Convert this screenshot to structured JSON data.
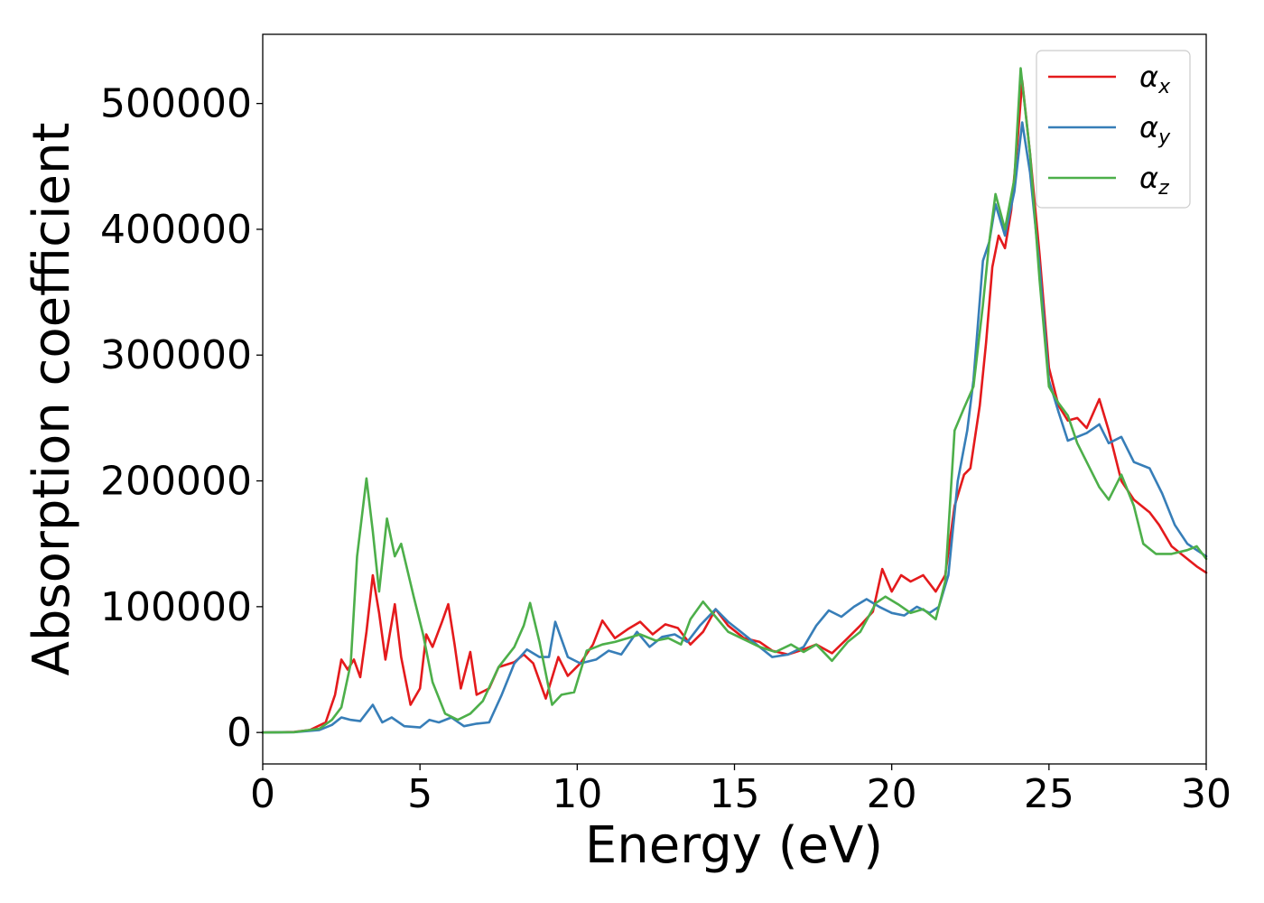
{
  "chart_data": {
    "type": "line",
    "xlabel": "Energy (eV)",
    "ylabel": "Absorption coefficient",
    "xlim": [
      0,
      30
    ],
    "ylim": [
      -25000,
      555000
    ],
    "xticks": [
      "0",
      "5",
      "10",
      "15",
      "20",
      "25",
      "30"
    ],
    "yticks": [
      "0",
      "100000",
      "200000",
      "300000",
      "400000",
      "500000"
    ],
    "grid": false,
    "legend_position": "top-right",
    "series": [
      {
        "name": "α",
        "subscript": "x",
        "color": "#e41a1c",
        "points": [
          [
            0,
            0
          ],
          [
            1,
            500
          ],
          [
            1.5,
            2000
          ],
          [
            2,
            8000
          ],
          [
            2.3,
            30000
          ],
          [
            2.5,
            58000
          ],
          [
            2.7,
            50000
          ],
          [
            2.9,
            58000
          ],
          [
            3.1,
            44000
          ],
          [
            3.3,
            80000
          ],
          [
            3.5,
            125000
          ],
          [
            3.7,
            95000
          ],
          [
            3.9,
            58000
          ],
          [
            4.2,
            102000
          ],
          [
            4.4,
            60000
          ],
          [
            4.7,
            22000
          ],
          [
            5.0,
            35000
          ],
          [
            5.2,
            78000
          ],
          [
            5.4,
            68000
          ],
          [
            5.7,
            88000
          ],
          [
            5.9,
            102000
          ],
          [
            6.1,
            70000
          ],
          [
            6.3,
            35000
          ],
          [
            6.6,
            64000
          ],
          [
            6.8,
            30000
          ],
          [
            7.2,
            35000
          ],
          [
            7.5,
            52000
          ],
          [
            8.0,
            56000
          ],
          [
            8.3,
            62000
          ],
          [
            8.6,
            55000
          ],
          [
            9.0,
            27000
          ],
          [
            9.4,
            60000
          ],
          [
            9.7,
            45000
          ],
          [
            10.1,
            55000
          ],
          [
            10.5,
            70000
          ],
          [
            10.8,
            89000
          ],
          [
            11.2,
            75000
          ],
          [
            11.6,
            82000
          ],
          [
            12.0,
            88000
          ],
          [
            12.4,
            78000
          ],
          [
            12.8,
            86000
          ],
          [
            13.2,
            83000
          ],
          [
            13.6,
            70000
          ],
          [
            14.0,
            80000
          ],
          [
            14.4,
            98000
          ],
          [
            14.8,
            85000
          ],
          [
            15.3,
            75000
          ],
          [
            15.8,
            72000
          ],
          [
            16.2,
            65000
          ],
          [
            16.7,
            62000
          ],
          [
            17.2,
            66000
          ],
          [
            17.6,
            70000
          ],
          [
            18.1,
            63000
          ],
          [
            18.6,
            75000
          ],
          [
            19.0,
            85000
          ],
          [
            19.4,
            96000
          ],
          [
            19.7,
            130000
          ],
          [
            20.0,
            112000
          ],
          [
            20.3,
            125000
          ],
          [
            20.6,
            120000
          ],
          [
            21.0,
            125000
          ],
          [
            21.4,
            112000
          ],
          [
            21.7,
            125000
          ],
          [
            22.0,
            180000
          ],
          [
            22.3,
            205000
          ],
          [
            22.5,
            210000
          ],
          [
            22.8,
            260000
          ],
          [
            23.0,
            310000
          ],
          [
            23.2,
            370000
          ],
          [
            23.4,
            395000
          ],
          [
            23.6,
            385000
          ],
          [
            23.8,
            415000
          ],
          [
            24.0,
            470000
          ],
          [
            24.15,
            518000
          ],
          [
            24.4,
            460000
          ],
          [
            24.7,
            380000
          ],
          [
            25.0,
            290000
          ],
          [
            25.3,
            260000
          ],
          [
            25.6,
            248000
          ],
          [
            25.9,
            250000
          ],
          [
            26.2,
            242000
          ],
          [
            26.6,
            265000
          ],
          [
            26.9,
            240000
          ],
          [
            27.3,
            200000
          ],
          [
            27.7,
            185000
          ],
          [
            28.2,
            175000
          ],
          [
            28.5,
            165000
          ],
          [
            28.9,
            148000
          ],
          [
            29.3,
            140000
          ],
          [
            29.7,
            132000
          ],
          [
            30,
            127000
          ]
        ]
      },
      {
        "name": "α",
        "subscript": "y",
        "color": "#377eb8",
        "points": [
          [
            0,
            0
          ],
          [
            1,
            300
          ],
          [
            1.8,
            2000
          ],
          [
            2.2,
            6000
          ],
          [
            2.5,
            12000
          ],
          [
            2.8,
            10000
          ],
          [
            3.1,
            9000
          ],
          [
            3.5,
            22000
          ],
          [
            3.8,
            8000
          ],
          [
            4.1,
            12000
          ],
          [
            4.5,
            5000
          ],
          [
            5.0,
            4000
          ],
          [
            5.3,
            10000
          ],
          [
            5.6,
            8000
          ],
          [
            6.0,
            12000
          ],
          [
            6.4,
            5000
          ],
          [
            6.8,
            7000
          ],
          [
            7.2,
            8000
          ],
          [
            7.6,
            30000
          ],
          [
            8.0,
            55000
          ],
          [
            8.4,
            66000
          ],
          [
            8.8,
            60000
          ],
          [
            9.1,
            60000
          ],
          [
            9.3,
            88000
          ],
          [
            9.7,
            60000
          ],
          [
            10.1,
            55000
          ],
          [
            10.6,
            58000
          ],
          [
            11.0,
            65000
          ],
          [
            11.4,
            62000
          ],
          [
            11.9,
            80000
          ],
          [
            12.3,
            68000
          ],
          [
            12.7,
            76000
          ],
          [
            13.1,
            78000
          ],
          [
            13.5,
            72000
          ],
          [
            13.9,
            85000
          ],
          [
            14.4,
            98000
          ],
          [
            14.8,
            88000
          ],
          [
            15.2,
            80000
          ],
          [
            15.7,
            70000
          ],
          [
            16.2,
            60000
          ],
          [
            16.7,
            62000
          ],
          [
            17.2,
            68000
          ],
          [
            17.6,
            85000
          ],
          [
            18.0,
            97000
          ],
          [
            18.4,
            92000
          ],
          [
            18.8,
            100000
          ],
          [
            19.2,
            106000
          ],
          [
            19.6,
            100000
          ],
          [
            20.0,
            95000
          ],
          [
            20.4,
            93000
          ],
          [
            20.8,
            100000
          ],
          [
            21.2,
            95000
          ],
          [
            21.5,
            100000
          ],
          [
            21.8,
            125000
          ],
          [
            22.1,
            200000
          ],
          [
            22.4,
            240000
          ],
          [
            22.6,
            280000
          ],
          [
            22.9,
            375000
          ],
          [
            23.1,
            390000
          ],
          [
            23.3,
            420000
          ],
          [
            23.6,
            395000
          ],
          [
            23.9,
            430000
          ],
          [
            24.15,
            485000
          ],
          [
            24.4,
            445000
          ],
          [
            24.7,
            370000
          ],
          [
            25.0,
            280000
          ],
          [
            25.3,
            255000
          ],
          [
            25.6,
            232000
          ],
          [
            25.9,
            235000
          ],
          [
            26.2,
            238000
          ],
          [
            26.6,
            245000
          ],
          [
            26.9,
            230000
          ],
          [
            27.3,
            235000
          ],
          [
            27.7,
            215000
          ],
          [
            28.2,
            210000
          ],
          [
            28.6,
            190000
          ],
          [
            29.0,
            165000
          ],
          [
            29.4,
            150000
          ],
          [
            29.7,
            145000
          ],
          [
            30,
            140000
          ]
        ]
      },
      {
        "name": "α",
        "subscript": "z",
        "color": "#4daf4a",
        "points": [
          [
            0,
            0
          ],
          [
            1,
            300
          ],
          [
            1.8,
            3000
          ],
          [
            2.2,
            10000
          ],
          [
            2.5,
            20000
          ],
          [
            2.8,
            55000
          ],
          [
            3.0,
            140000
          ],
          [
            3.3,
            202000
          ],
          [
            3.5,
            160000
          ],
          [
            3.7,
            112000
          ],
          [
            3.95,
            170000
          ],
          [
            4.2,
            140000
          ],
          [
            4.4,
            150000
          ],
          [
            4.8,
            108000
          ],
          [
            5.1,
            78000
          ],
          [
            5.4,
            40000
          ],
          [
            5.8,
            15000
          ],
          [
            6.2,
            10000
          ],
          [
            6.6,
            15000
          ],
          [
            7.0,
            25000
          ],
          [
            7.5,
            52000
          ],
          [
            8.0,
            68000
          ],
          [
            8.3,
            85000
          ],
          [
            8.5,
            103000
          ],
          [
            8.8,
            72000
          ],
          [
            9.2,
            22000
          ],
          [
            9.5,
            30000
          ],
          [
            9.9,
            32000
          ],
          [
            10.3,
            65000
          ],
          [
            10.8,
            70000
          ],
          [
            11.2,
            72000
          ],
          [
            11.6,
            75000
          ],
          [
            12.0,
            78000
          ],
          [
            12.5,
            73000
          ],
          [
            12.9,
            75000
          ],
          [
            13.3,
            70000
          ],
          [
            13.6,
            90000
          ],
          [
            14.0,
            104000
          ],
          [
            14.4,
            92000
          ],
          [
            14.8,
            80000
          ],
          [
            15.3,
            74000
          ],
          [
            15.8,
            68000
          ],
          [
            16.3,
            64000
          ],
          [
            16.8,
            70000
          ],
          [
            17.2,
            64000
          ],
          [
            17.6,
            70000
          ],
          [
            18.1,
            57000
          ],
          [
            18.6,
            72000
          ],
          [
            19.0,
            80000
          ],
          [
            19.5,
            103000
          ],
          [
            19.8,
            108000
          ],
          [
            20.2,
            102000
          ],
          [
            20.6,
            95000
          ],
          [
            21.0,
            98000
          ],
          [
            21.4,
            90000
          ],
          [
            21.7,
            120000
          ],
          [
            22.0,
            240000
          ],
          [
            22.3,
            258000
          ],
          [
            22.6,
            275000
          ],
          [
            22.9,
            340000
          ],
          [
            23.1,
            390000
          ],
          [
            23.3,
            428000
          ],
          [
            23.6,
            400000
          ],
          [
            23.9,
            440000
          ],
          [
            24.1,
            528000
          ],
          [
            24.4,
            460000
          ],
          [
            24.7,
            360000
          ],
          [
            25.0,
            275000
          ],
          [
            25.3,
            262000
          ],
          [
            25.6,
            252000
          ],
          [
            25.9,
            230000
          ],
          [
            26.3,
            210000
          ],
          [
            26.6,
            195000
          ],
          [
            26.9,
            185000
          ],
          [
            27.3,
            205000
          ],
          [
            27.7,
            180000
          ],
          [
            28.0,
            150000
          ],
          [
            28.4,
            142000
          ],
          [
            28.9,
            142000
          ],
          [
            29.4,
            145000
          ],
          [
            29.7,
            148000
          ],
          [
            30,
            138000
          ]
        ]
      }
    ]
  }
}
